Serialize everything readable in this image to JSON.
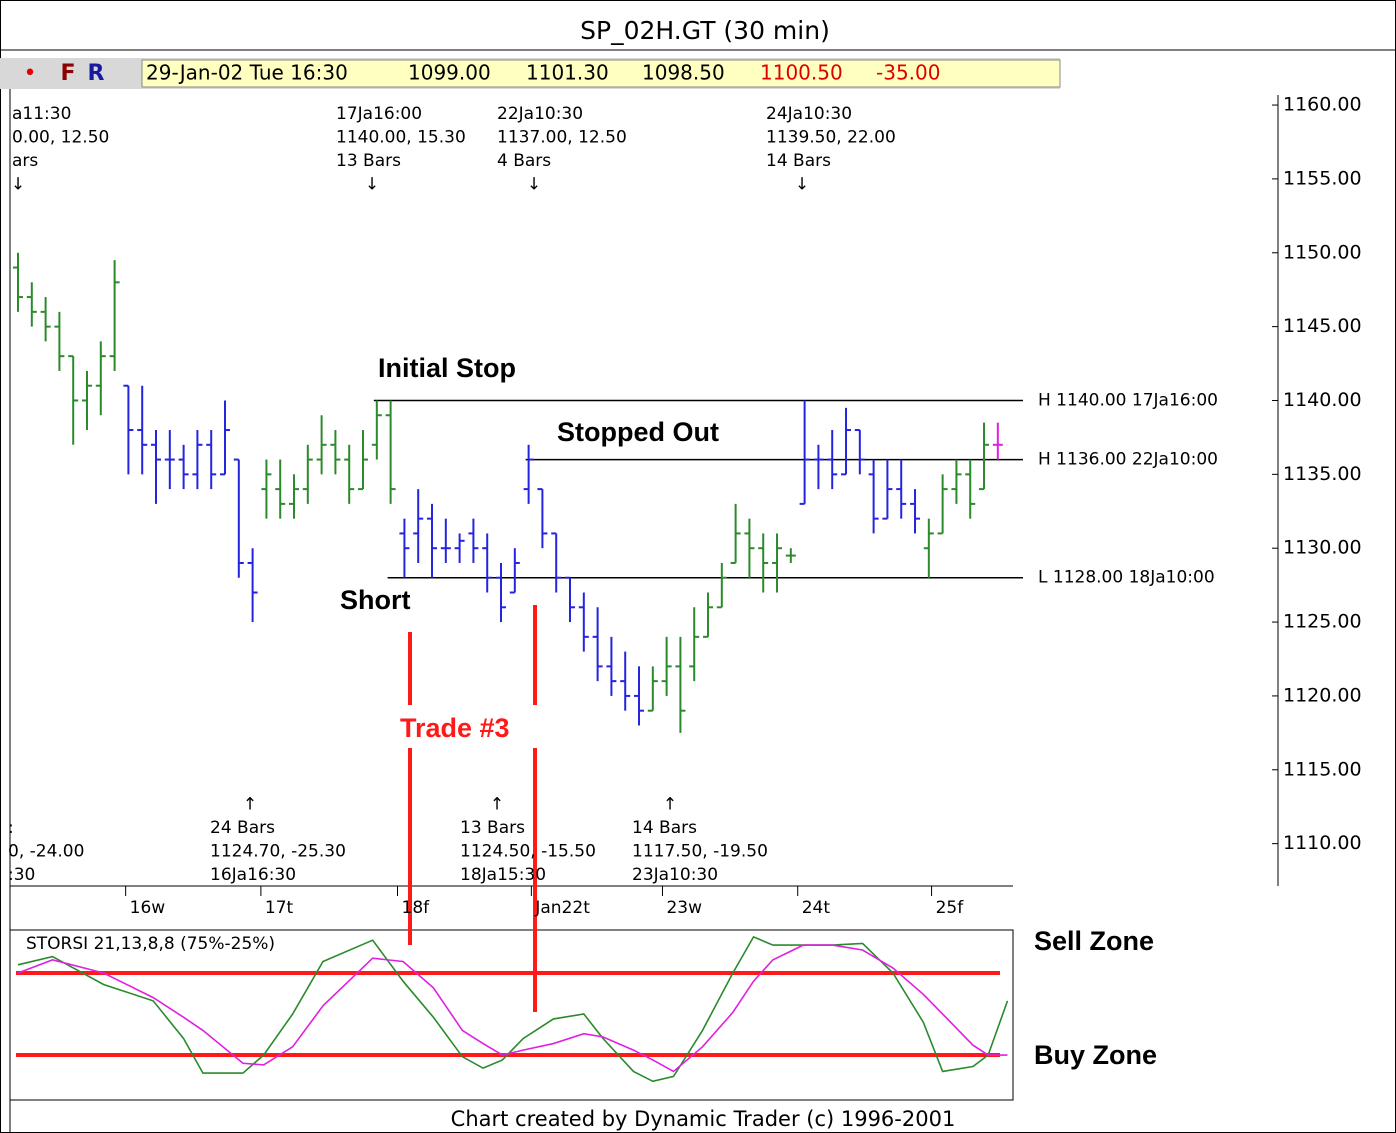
{
  "header": {
    "title": "SP_02H.GT (30 min)",
    "buttons": [
      "•",
      "F",
      "R"
    ],
    "quote": [
      "29-Jan-02 Tue 16:30",
      "1099.00",
      "1101.30",
      "1098.50",
      "1100.50",
      "-35.00"
    ]
  },
  "footer": "Chart created by Dynamic Trader (c) 1996-2001",
  "chart_data": [
    {
      "type": "ohlc",
      "open": [
        1149,
        1147,
        1146,
        1145,
        1143,
        1140,
        1141,
        1143,
        1141,
        1138,
        1137,
        1136,
        1136,
        1135,
        1137,
        1135,
        1136,
        1129,
        1134,
        1134,
        1133,
        1134,
        1136,
        1137,
        1136,
        1134,
        1137,
        1139,
        1131,
        1131,
        1132,
        1130,
        1130,
        1131,
        1130,
        1128,
        1127,
        1134,
        1134,
        1131,
        1128,
        1126,
        1124,
        1122,
        1121,
        1120,
        1119,
        1121,
        1122,
        1122,
        1124,
        1126,
        1129,
        1131,
        1130,
        1129,
        1129.5,
        1133,
        1136,
        1136,
        1135,
        1138,
        1135,
        1132,
        1134,
        1133,
        1130,
        1131,
        1134,
        1135,
        1134,
        1137
      ],
      "high": [
        1150,
        1148,
        1147,
        1146,
        1143,
        1142,
        1144,
        1149.5,
        1141,
        1141,
        1138,
        1138,
        1137,
        1138,
        1138,
        1140,
        1136,
        1130,
        1136,
        1136,
        1135,
        1137,
        1139,
        1138,
        1137,
        1138,
        1140,
        1140,
        1132,
        1134,
        1133,
        1132,
        1131,
        1132,
        1131,
        1129,
        1130,
        1137,
        1134,
        1131,
        1128,
        1127,
        1126,
        1124,
        1123,
        1122,
        1122,
        1124,
        1124,
        1126,
        1127,
        1129,
        1133,
        1132,
        1131,
        1131,
        1130,
        1140,
        1137,
        1138,
        1139.5,
        1138,
        1136,
        1136,
        1136,
        1134,
        1132,
        1135,
        1136,
        1136,
        1138.5,
        1138.5
      ],
      "low": [
        1146,
        1145,
        1144,
        1142,
        1137,
        1138,
        1139,
        1142,
        1135,
        1135,
        1133,
        1134,
        1134,
        1134,
        1134,
        1135,
        1128,
        1125,
        1132,
        1132,
        1132,
        1133,
        1135,
        1135,
        1133,
        1134,
        1136,
        1133,
        1128,
        1129,
        1128,
        1129,
        1129,
        1129,
        1127,
        1125,
        1127,
        1133,
        1130,
        1127,
        1125,
        1123,
        1121,
        1120,
        1119,
        1118,
        1119,
        1120,
        1117.5,
        1121,
        1124,
        1126,
        1129,
        1128,
        1127,
        1127,
        1129,
        1133,
        1134,
        1134,
        1135,
        1135,
        1131,
        1132,
        1132,
        1131,
        1128,
        1131,
        1133,
        1132,
        1134,
        1136
      ],
      "close": [
        1147,
        1146,
        1145,
        1143,
        1140,
        1141,
        1143,
        1148,
        1138,
        1137,
        1136,
        1136,
        1135,
        1137,
        1135,
        1138,
        1129,
        1127,
        1135,
        1133,
        1134,
        1136,
        1137,
        1136,
        1134,
        1136,
        1139,
        1134,
        1130,
        1132,
        1130,
        1130,
        1130.5,
        1130,
        1128,
        1126,
        1129,
        1136,
        1131,
        1128,
        1126,
        1124,
        1122,
        1121,
        1120,
        1119,
        1121,
        1122,
        1119,
        1124,
        1126,
        1128,
        1131,
        1130,
        1129,
        1130,
        1129.5,
        1136,
        1136,
        1135,
        1138,
        1136,
        1132,
        1134,
        1133,
        1132,
        1131,
        1134,
        1135,
        1133,
        1137,
        1137
      ],
      "colors": [
        "#2b8a2b",
        "#2b8a2b",
        "#2b8a2b",
        "#2b8a2b",
        "#2b8a2b",
        "#2b8a2b",
        "#2b8a2b",
        "#2b8a2b",
        "#2424e0",
        "#2424e0",
        "#2424e0",
        "#2424e0",
        "#2424e0",
        "#2424e0",
        "#2424e0",
        "#2424e0",
        "#2424e0",
        "#2424e0",
        "#2b8a2b",
        "#2b8a2b",
        "#2b8a2b",
        "#2b8a2b",
        "#2b8a2b",
        "#2b8a2b",
        "#2b8a2b",
        "#2b8a2b",
        "#2b8a2b",
        "#2b8a2b",
        "#2424e0",
        "#2424e0",
        "#2424e0",
        "#2424e0",
        "#2424e0",
        "#2424e0",
        "#2424e0",
        "#2424e0",
        "#2424e0",
        "#2424e0",
        "#2424e0",
        "#2424e0",
        "#2424e0",
        "#2424e0",
        "#2424e0",
        "#2424e0",
        "#2424e0",
        "#2424e0",
        "#2b8a2b",
        "#2b8a2b",
        "#2b8a2b",
        "#2b8a2b",
        "#2b8a2b",
        "#2b8a2b",
        "#2b8a2b",
        "#2b8a2b",
        "#2b8a2b",
        "#2b8a2b",
        "#2b8a2b",
        "#2424e0",
        "#2424e0",
        "#2424e0",
        "#2424e0",
        "#2424e0",
        "#2424e0",
        "#2424e0",
        "#2424e0",
        "#2424e0",
        "#2b8a2b",
        "#2b8a2b",
        "#2b8a2b",
        "#2b8a2b",
        "#2b8a2b",
        "#e020e0"
      ],
      "xlim": [
        -0.58,
        72.1
      ],
      "xticks": [
        {
          "value": 7.8,
          "label": "16w"
        },
        {
          "value": 17.6,
          "label": "17t"
        },
        {
          "value": 27.5,
          "label": "18f"
        },
        {
          "value": 37.2,
          "label": "Jan22t"
        },
        {
          "value": 46.7,
          "label": "23w"
        },
        {
          "value": 56.5,
          "label": "24t"
        },
        {
          "value": 66.2,
          "label": "25f"
        }
      ],
      "ylim": [
        1107.2,
        1160.68
      ],
      "yticks": [
        {
          "value": 1110,
          "label": "1110.00"
        },
        {
          "value": 1115,
          "label": "1115.00"
        },
        {
          "value": 1120,
          "label": "1120.00"
        },
        {
          "value": 1125,
          "label": "1125.00"
        },
        {
          "value": 1130,
          "label": "1130.00"
        },
        {
          "value": 1135,
          "label": "1135.00"
        },
        {
          "value": 1140,
          "label": "1140.00"
        },
        {
          "value": 1145,
          "label": "1145.00"
        },
        {
          "value": 1150,
          "label": "1150.00"
        },
        {
          "value": 1155,
          "label": "1155.00"
        },
        {
          "value": 1160,
          "label": "1160.00"
        }
      ],
      "levels": [
        {
          "value": 1140,
          "label": "H 1140.00 17Ja16:00"
        },
        {
          "value": 1136,
          "label": "H 1136.00 22Ja10:00"
        },
        {
          "value": 1128,
          "label": "L 1128.00 18Ja10:00"
        }
      ],
      "swing_labels_top": [
        [
          "a11:30",
          "0.00, 12.50",
          "ars",
          "↓"
        ],
        [
          "17Ja16:00",
          "1140.00, 15.30",
          "13 Bars",
          "↓"
        ],
        [
          "22Ja10:30",
          "1137.00, 12.50",
          "4 Bars",
          "↓"
        ],
        [
          "24Ja10:30",
          "1139.50, 22.00",
          "14 Bars",
          "↓"
        ]
      ],
      "swing_labels_bottom": [
        [
          ":",
          "0, -24.00",
          ":30"
        ],
        [
          "↑",
          "24 Bars",
          "1124.70, -25.30",
          "16Ja16:30"
        ],
        [
          "↑",
          "13 Bars",
          "1124.50, -15.50",
          "18Ja15:30"
        ],
        [
          "↑",
          "14 Bars",
          "1117.50, -19.50",
          "23Ja10:30"
        ]
      ],
      "notes": [
        "Initial Stop",
        "Stopped Out",
        "Short",
        "Trade #3"
      ]
    },
    {
      "type": "line",
      "title": "STORSI 21,13,8,8 (75%-25%)",
      "x": [
        0,
        2.5,
        6.2,
        9.8,
        12,
        13.4,
        16.3,
        17.8,
        19.9,
        22.1,
        25.7,
        27.9,
        30.1,
        32.2,
        33.7,
        35.1,
        36.6,
        38.8,
        41,
        42.4,
        44.6,
        46,
        47.5,
        49.6,
        51.8,
        53.3,
        54.7,
        56.9,
        59,
        61.2,
        63.4,
        65.6,
        67,
        69.2,
        70.3,
        71.7
      ],
      "xlim": [
        -0.58,
        72.1
      ],
      "ylim": [
        -2.4,
        101.2
      ],
      "series": [
        {
          "color": "#2b8a2b",
          "values": [
            80,
            85,
            68,
            58,
            35,
            14,
            14,
            25,
            50,
            82,
            95,
            70,
            48,
            24,
            17,
            22,
            35,
            47,
            50,
            35,
            15,
            9,
            12,
            40,
            75,
            97,
            92,
            92,
            92,
            93,
            75,
            45,
            15,
            18,
            25,
            58
          ]
        },
        {
          "color": "#e020e0",
          "values": [
            75,
            83,
            75,
            60,
            48,
            40,
            20,
            19,
            30,
            55,
            84,
            82,
            66,
            40,
            32,
            25,
            28,
            32,
            38,
            36,
            28,
            22,
            15,
            30,
            51,
            70,
            83,
            92,
            92,
            89,
            78,
            62,
            50,
            31,
            25,
            25
          ]
        }
      ],
      "levels": [
        75,
        25
      ],
      "level_color": "#ff1a1a",
      "zones": [
        "Sell Zone",
        "Buy Zone"
      ]
    }
  ]
}
